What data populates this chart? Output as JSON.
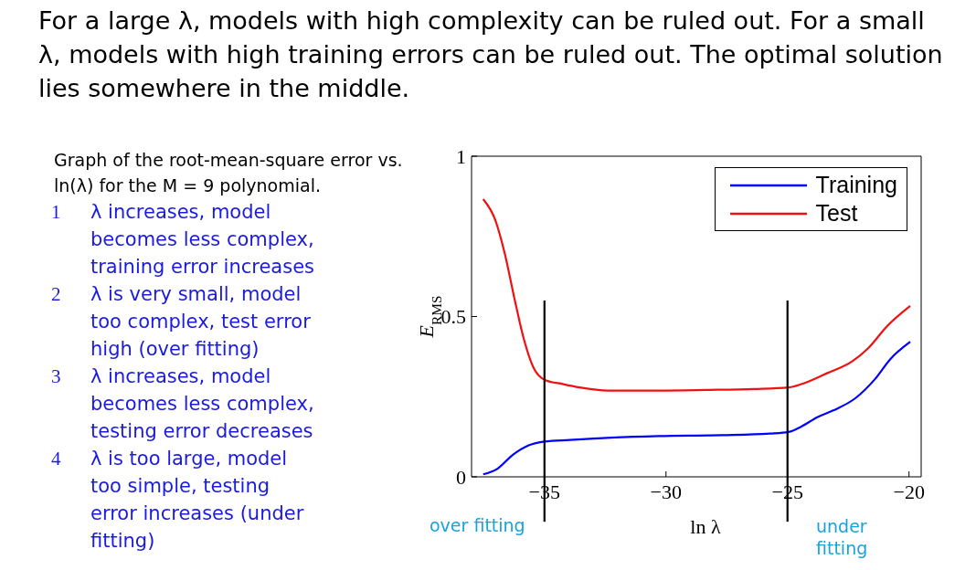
{
  "chart_data": {
    "type": "line",
    "title": "For a large λ, models with high complexity can be ruled out. For a small λ, models with high training errors can be ruled out. The optimal solution lies somewhere in the middle.",
    "subtitle": "Graph of the root-mean-square error vs. ln(λ) for the M = 9 polynomial.",
    "xlabel": "ln λ",
    "ylabel": "E$_{RMS}$",
    "xlim": [
      -38,
      -19.5
    ],
    "xticks": [
      -35,
      -30,
      -25,
      -20
    ],
    "ylim": [
      0,
      1
    ],
    "yticks": [
      0,
      0.5,
      1
    ],
    "grid": false,
    "legend": "top right",
    "marker": "none",
    "line_style": "solid",
    "series": [
      {
        "name": "Training",
        "color": "#0000ff",
        "x": [
          -37.52,
          -36.96,
          -36.31,
          -35.65,
          -35,
          -33.96,
          -32.26,
          -30.3,
          -27.69,
          -25.73,
          -24.95,
          -24.43,
          -23.77,
          -23.12,
          -22.21,
          -21.42,
          -20.77,
          -19.95
        ],
        "values": [
          0.008,
          0.024,
          0.068,
          0.098,
          0.11,
          0.115,
          0.122,
          0.127,
          0.13,
          0.135,
          0.14,
          0.157,
          0.186,
          0.207,
          0.245,
          0.303,
          0.367,
          0.421
        ]
      },
      {
        "name": "Test",
        "color": "#ee1111",
        "x": [
          -37.52,
          -37.02,
          -36.63,
          -36.24,
          -35.85,
          -35.46,
          -35,
          -34.22,
          -33.56,
          -32.39,
          -30.3,
          -28.34,
          -26.38,
          -24.95,
          -24.43,
          -23.38,
          -22.34,
          -21.68,
          -20.9,
          -19.95
        ],
        "values": [
          0.866,
          0.8,
          0.695,
          0.558,
          0.43,
          0.342,
          0.303,
          0.289,
          0.279,
          0.269,
          0.269,
          0.271,
          0.274,
          0.279,
          0.289,
          0.323,
          0.36,
          0.401,
          0.47,
          0.533
        ]
      }
    ],
    "ref_lines": [
      {
        "axis": "x",
        "value": -35,
        "color": "#000000"
      },
      {
        "axis": "x",
        "value": -25,
        "color": "#000000"
      }
    ],
    "annotations": [
      "1 λ increases, model becomes less complex, training error increases",
      "2 λ is very small, model too complex, test error high (over fitting)",
      "3 λ increases, model becomes less complex, testing error decreases",
      "4 λ is too large, model too simple, testing error increases (under fitting)",
      "over fitting",
      "under fitting"
    ]
  }
}
